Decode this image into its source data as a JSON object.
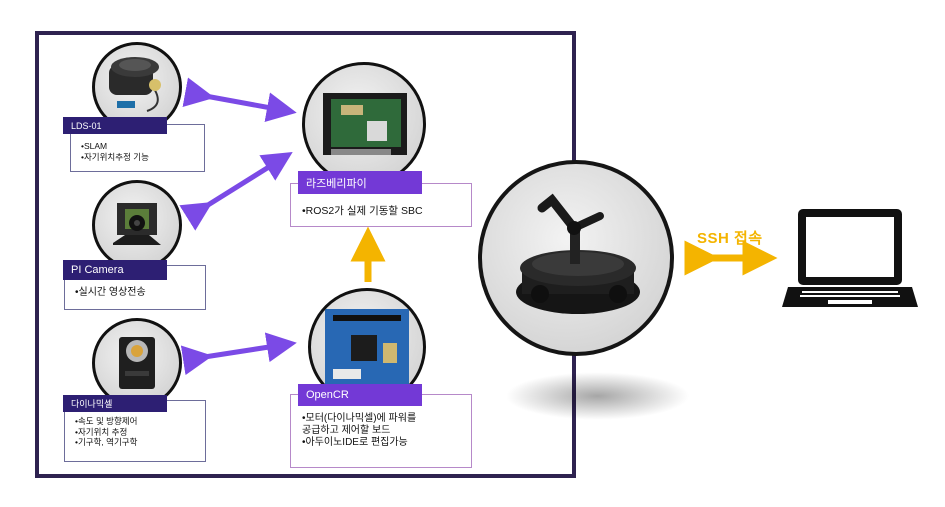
{
  "lds": {
    "label": "LDS-01",
    "items": [
      "•SLAM",
      "•자기위치추정 기능"
    ],
    "icon": "lidar-sensor-image"
  },
  "camera": {
    "label": "PI Camera",
    "items": [
      "•실시간 영상전송"
    ],
    "icon": "camera-module-image"
  },
  "dynamixel": {
    "label": "다이나믹셀",
    "items": [
      "•속도 및 방향제어",
      "•자기위치 추정",
      "•기구학, 역기구학"
    ],
    "icon": "servo-motor-image"
  },
  "rpi": {
    "label": "라즈베리파이",
    "items": [
      "•ROS2가 실제 기동할 SBC"
    ],
    "icon": "raspberry-pi-board-image"
  },
  "opencr": {
    "label": "OpenCR",
    "items": [
      "•모터(다이나믹셀)에 파워를",
      " 공급하고 제어할 보드",
      "•아두이노IDE로 편집가능"
    ],
    "icon": "opencr-board-image"
  },
  "ssh": {
    "label": "SSH 접속"
  },
  "colors": {
    "frame": "#2e2250",
    "label_dark": "#2d1f73",
    "label_purple": "#7339d6",
    "arrow_purple": "#7b4ae6",
    "arrow_yellow": "#f4b400"
  }
}
